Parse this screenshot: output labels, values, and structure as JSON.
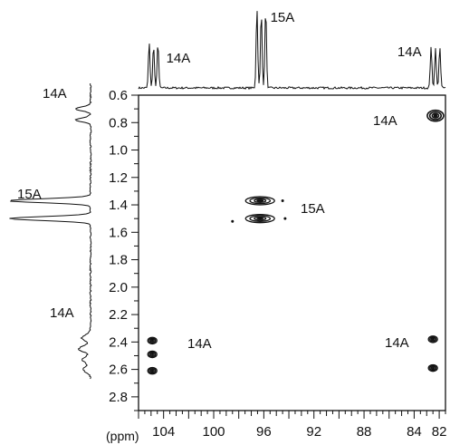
{
  "chart_data": {
    "type": "scatter",
    "title": "",
    "x_axis": {
      "label": "(ppm)",
      "range": [
        106,
        81.5
      ],
      "ticks": [
        104,
        100,
        96,
        92,
        88,
        84,
        82
      ],
      "tick_labels": [
        "104",
        "100",
        "96",
        "92",
        "88",
        "84",
        "82"
      ]
    },
    "y_axis": {
      "label": "",
      "range": [
        0.6,
        2.9
      ],
      "inverted": true,
      "ticks": [
        0.6,
        0.8,
        1.0,
        1.2,
        1.4,
        1.6,
        1.8,
        2.0,
        2.2,
        2.4,
        2.6,
        2.8
      ],
      "tick_labels": [
        "0.6",
        "0.8",
        "1.0",
        "1.2",
        "1.4",
        "1.6",
        "1.8",
        "2.0",
        "2.2",
        "2.4",
        "2.6",
        "2.8"
      ]
    },
    "cross_peaks": [
      {
        "x": 82.3,
        "y": 0.75,
        "group": "14A"
      },
      {
        "x": 96.3,
        "y": 1.37,
        "group": "15A"
      },
      {
        "x": 96.3,
        "y": 1.5,
        "group": "15A"
      },
      {
        "x": 104.9,
        "y": 2.39,
        "group": "14A"
      },
      {
        "x": 104.9,
        "y": 2.49,
        "group": "14A"
      },
      {
        "x": 104.9,
        "y": 2.61,
        "group": "14A"
      },
      {
        "x": 82.5,
        "y": 2.38,
        "group": "14A"
      },
      {
        "x": 82.5,
        "y": 2.59,
        "group": "14A"
      }
    ],
    "top_spectrum_peaks": [
      {
        "x": 104.8,
        "label": "14A"
      },
      {
        "x": 96.2,
        "label": "15A"
      },
      {
        "x": 82.3,
        "label": "14A"
      }
    ],
    "left_spectrum_peaks": [
      {
        "y": 0.74,
        "label": "14A"
      },
      {
        "y": 1.43,
        "label": "15A"
      },
      {
        "y": 2.45,
        "label": "14A"
      }
    ],
    "plot_annotations": [
      {
        "x": 82.3,
        "y": 0.75,
        "label": "14A"
      },
      {
        "x": 96.3,
        "y": 1.43,
        "label": "15A"
      },
      {
        "x": 104.9,
        "y": 2.49,
        "label": "14A"
      },
      {
        "x": 82.5,
        "y": 2.49,
        "label": "14A"
      }
    ],
    "grid": false,
    "legend": "none"
  }
}
